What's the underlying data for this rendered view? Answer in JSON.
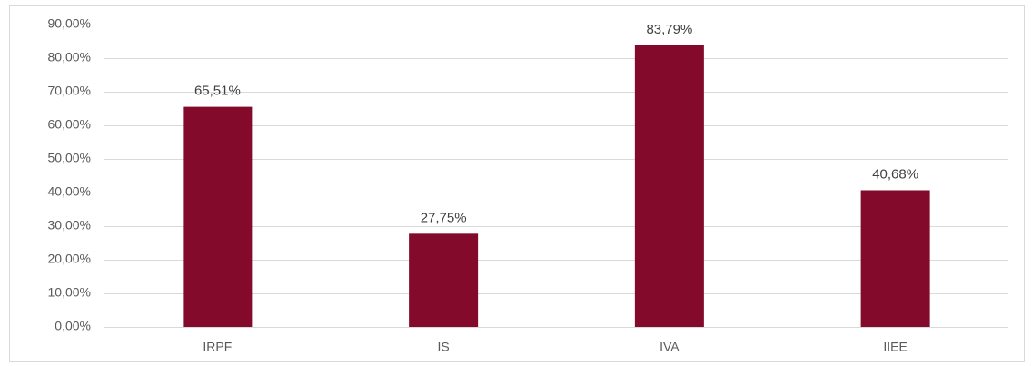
{
  "chart_data": {
    "type": "bar",
    "categories": [
      "IRPF",
      "IS",
      "IVA",
      "IIEE"
    ],
    "values": [
      65.51,
      27.75,
      83.79,
      40.68
    ],
    "value_labels": [
      "65,51%",
      "27,75%",
      "83,79%",
      "40,68%"
    ],
    "color": "#840a2c",
    "ylim": [
      0,
      90
    ],
    "yticks": [
      {
        "value": 0,
        "label": "0,00%"
      },
      {
        "value": 10,
        "label": "10,00%"
      },
      {
        "value": 20,
        "label": "20,00%"
      },
      {
        "value": 30,
        "label": "30,00%"
      },
      {
        "value": 40,
        "label": "40,00%"
      },
      {
        "value": 50,
        "label": "50,00%"
      },
      {
        "value": 60,
        "label": "60,00%"
      },
      {
        "value": 70,
        "label": "70,00%"
      },
      {
        "value": 80,
        "label": "80,00%"
      },
      {
        "value": 90,
        "label": "90,00%"
      }
    ],
    "grid": true
  }
}
